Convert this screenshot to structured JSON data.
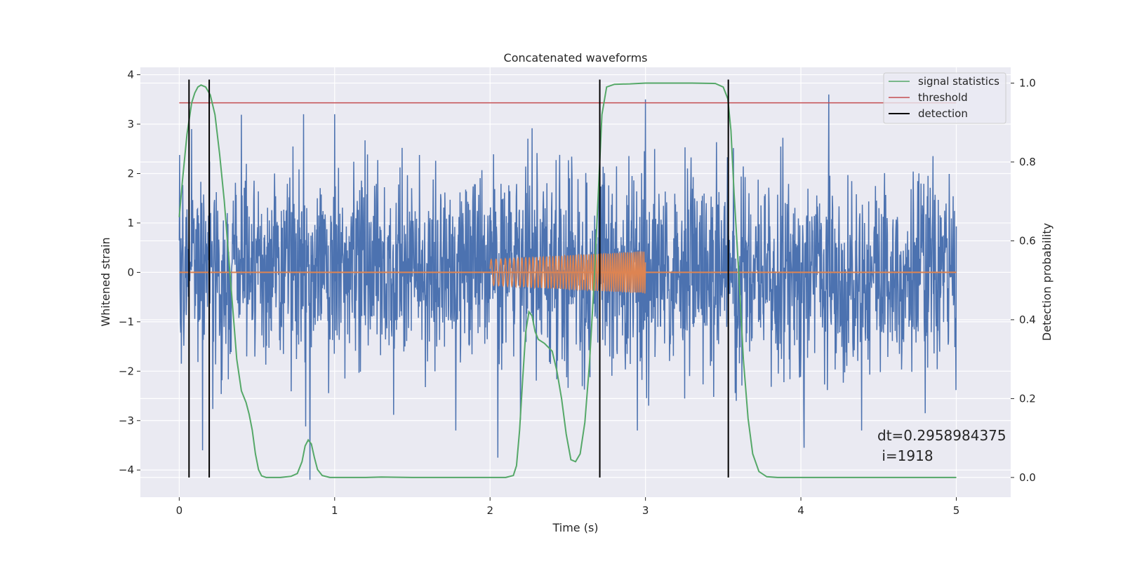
{
  "chart_data": {
    "type": "line",
    "title": "Concatenated waveforms",
    "xlabel": "Time (s)",
    "ylabel": "Whitened strain",
    "ylabel_right": "Detection probability",
    "xlim": [
      -0.25,
      5.35
    ],
    "ylim": [
      -4.55,
      4.15
    ],
    "ylim_right": [
      -0.05,
      1.04
    ],
    "x_ticks": [
      0,
      1,
      2,
      3,
      4,
      5
    ],
    "y_ticks": [
      -4,
      -3,
      -2,
      -1,
      0,
      1,
      2,
      3,
      4
    ],
    "y_ticks_right": [
      0.0,
      0.2,
      0.4,
      0.6,
      0.8,
      1.0
    ],
    "x_tick_labels": [
      "0",
      "1",
      "2",
      "3",
      "4",
      "5"
    ],
    "y_tick_labels": [
      "−4",
      "−3",
      "−2",
      "−1",
      "0",
      "1",
      "2",
      "3",
      "4"
    ],
    "y_tick_labels_right": [
      "0.0",
      "0.2",
      "0.4",
      "0.6",
      "0.8",
      "1.0"
    ],
    "grid": true,
    "legend_position": "upper right",
    "series": [
      {
        "name": "",
        "axis": "left",
        "color": "#4C72B0",
        "description": "whitened noise strain, dense, amplitude roughly ±2.5 with spikes up to ±4",
        "x_range": [
          0,
          5
        ],
        "typical_amplitude": 1.0,
        "extremes": [
          [
            0.08,
            2.9
          ],
          [
            0.15,
            -3.6
          ],
          [
            0.8,
            3.2
          ],
          [
            0.84,
            -4.2
          ],
          [
            2.05,
            -3.75
          ],
          [
            3.0,
            3.5
          ],
          [
            4.18,
            3.6
          ],
          [
            4.02,
            -3.55
          ],
          [
            4.8,
            -2.85
          ]
        ]
      },
      {
        "name": "",
        "axis": "left",
        "color": "#DD8452",
        "description": "injected chirp waveform",
        "flat": [
          [
            0,
            0
          ],
          [
            5,
            0
          ]
        ],
        "chirp": {
          "t_start": 2.0,
          "t_end": 3.0,
          "amp_start": 0.26,
          "amp_end": 0.43,
          "f_start": 30,
          "f_end": 80
        }
      },
      {
        "name": "signal statistics",
        "axis": "right",
        "color": "#55A868",
        "points": [
          [
            0.0,
            0.66
          ],
          [
            0.02,
            0.75
          ],
          [
            0.05,
            0.87
          ],
          [
            0.08,
            0.95
          ],
          [
            0.1,
            0.975
          ],
          [
            0.12,
            0.99
          ],
          [
            0.14,
            0.995
          ],
          [
            0.17,
            0.99
          ],
          [
            0.2,
            0.97
          ],
          [
            0.23,
            0.92
          ],
          [
            0.26,
            0.82
          ],
          [
            0.29,
            0.7
          ],
          [
            0.32,
            0.55
          ],
          [
            0.35,
            0.4
          ],
          [
            0.37,
            0.3
          ],
          [
            0.4,
            0.22
          ],
          [
            0.43,
            0.19
          ],
          [
            0.45,
            0.16
          ],
          [
            0.47,
            0.12
          ],
          [
            0.49,
            0.06
          ],
          [
            0.51,
            0.02
          ],
          [
            0.53,
            0.004
          ],
          [
            0.56,
            0.0
          ],
          [
            0.65,
            0.0
          ],
          [
            0.72,
            0.003
          ],
          [
            0.76,
            0.01
          ],
          [
            0.79,
            0.04
          ],
          [
            0.81,
            0.08
          ],
          [
            0.83,
            0.095
          ],
          [
            0.85,
            0.085
          ],
          [
            0.87,
            0.05
          ],
          [
            0.89,
            0.02
          ],
          [
            0.92,
            0.005
          ],
          [
            0.97,
            0.0
          ],
          [
            1.2,
            0.0
          ],
          [
            1.3,
            0.001
          ],
          [
            1.5,
            0.0
          ],
          [
            2.1,
            0.0
          ],
          [
            2.15,
            0.005
          ],
          [
            2.17,
            0.03
          ],
          [
            2.19,
            0.12
          ],
          [
            2.21,
            0.25
          ],
          [
            2.23,
            0.37
          ],
          [
            2.25,
            0.42
          ],
          [
            2.27,
            0.41
          ],
          [
            2.29,
            0.37
          ],
          [
            2.31,
            0.35
          ],
          [
            2.35,
            0.34
          ],
          [
            2.4,
            0.32
          ],
          [
            2.43,
            0.27
          ],
          [
            2.46,
            0.2
          ],
          [
            2.49,
            0.11
          ],
          [
            2.52,
            0.045
          ],
          [
            2.55,
            0.04
          ],
          [
            2.58,
            0.06
          ],
          [
            2.61,
            0.14
          ],
          [
            2.64,
            0.29
          ],
          [
            2.67,
            0.5
          ],
          [
            2.7,
            0.75
          ],
          [
            2.72,
            0.92
          ],
          [
            2.75,
            0.99
          ],
          [
            2.8,
            0.997
          ],
          [
            2.9,
            0.998
          ],
          [
            3.0,
            1.0
          ],
          [
            3.3,
            1.0
          ],
          [
            3.45,
            0.999
          ],
          [
            3.5,
            0.99
          ],
          [
            3.53,
            0.96
          ],
          [
            3.55,
            0.88
          ],
          [
            3.57,
            0.72
          ],
          [
            3.6,
            0.52
          ],
          [
            3.63,
            0.3
          ],
          [
            3.66,
            0.15
          ],
          [
            3.69,
            0.06
          ],
          [
            3.73,
            0.015
          ],
          [
            3.78,
            0.002
          ],
          [
            3.85,
            0.0
          ],
          [
            5.0,
            0.0
          ]
        ]
      },
      {
        "name": "threshold",
        "axis": "right",
        "color": "#C44E52",
        "value": 0.95,
        "x_range": [
          0,
          5
        ]
      },
      {
        "name": "detection",
        "axis": "right",
        "color": "#000000",
        "x_positions": [
          0.063,
          0.193,
          2.706,
          3.533
        ],
        "y_range": [
          0.0,
          1.0
        ]
      }
    ],
    "annotation": {
      "line1": "dt=0.2958984375",
      "line2": " i=1918"
    }
  }
}
